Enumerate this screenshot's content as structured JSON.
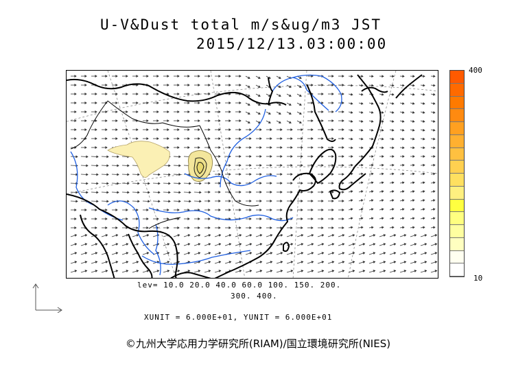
{
  "title": {
    "line1": "U-V&Dust total m/s&ug/m3 JST",
    "line2": "2015/12/13.03:00:00"
  },
  "colorbar": {
    "max_label": "400",
    "min_label": "10",
    "colors": [
      "#ff5a00",
      "#ff6a00",
      "#ff7a00",
      "#ff8a10",
      "#ffa020",
      "#ffb030",
      "#ffc040",
      "#ffd050",
      "#ffe060",
      "#fff080",
      "#ffff40",
      "#ffff80",
      "#ffffa0",
      "#ffffc0",
      "#fffff0",
      "#ffffff"
    ]
  },
  "levels": {
    "line1": "lev= 10.0 20.0 40.0 60.0 100. 150. 200.",
    "line2": "300. 400."
  },
  "units": "XUNIT = 6.000E+01, YUNIT = 6.000E+01",
  "credit": "©九州大学応用力学研究所(RIAM)/国立環境研究所(NIES)",
  "map": {
    "coast_color": "#000000",
    "river_color": "#1f5fe0",
    "dust_colors": [
      "#fff6c8",
      "#f2e9a8",
      "#e8dc8e"
    ]
  }
}
